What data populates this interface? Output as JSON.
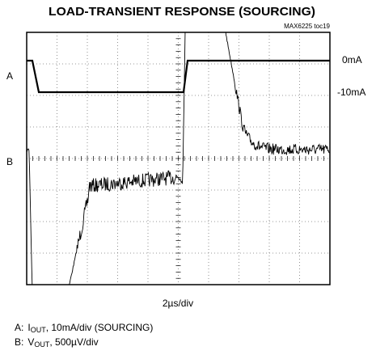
{
  "title": "LOAD-TRANSIENT RESPONSE (SOURCING)",
  "code": "MAX6225 toc19",
  "channels": [
    "A",
    "B"
  ],
  "levels": [
    "0mA",
    "-10mA"
  ],
  "timebase": "2µs/div",
  "notes": [
    {
      "label": "A:",
      "symbol": "I",
      "sub": "OUT",
      "rest": ", 10mA/div (SOURCING)"
    },
    {
      "label": "B:",
      "symbol": "V",
      "sub": "OUT",
      "rest": ", 500µV/div"
    }
  ]
}
